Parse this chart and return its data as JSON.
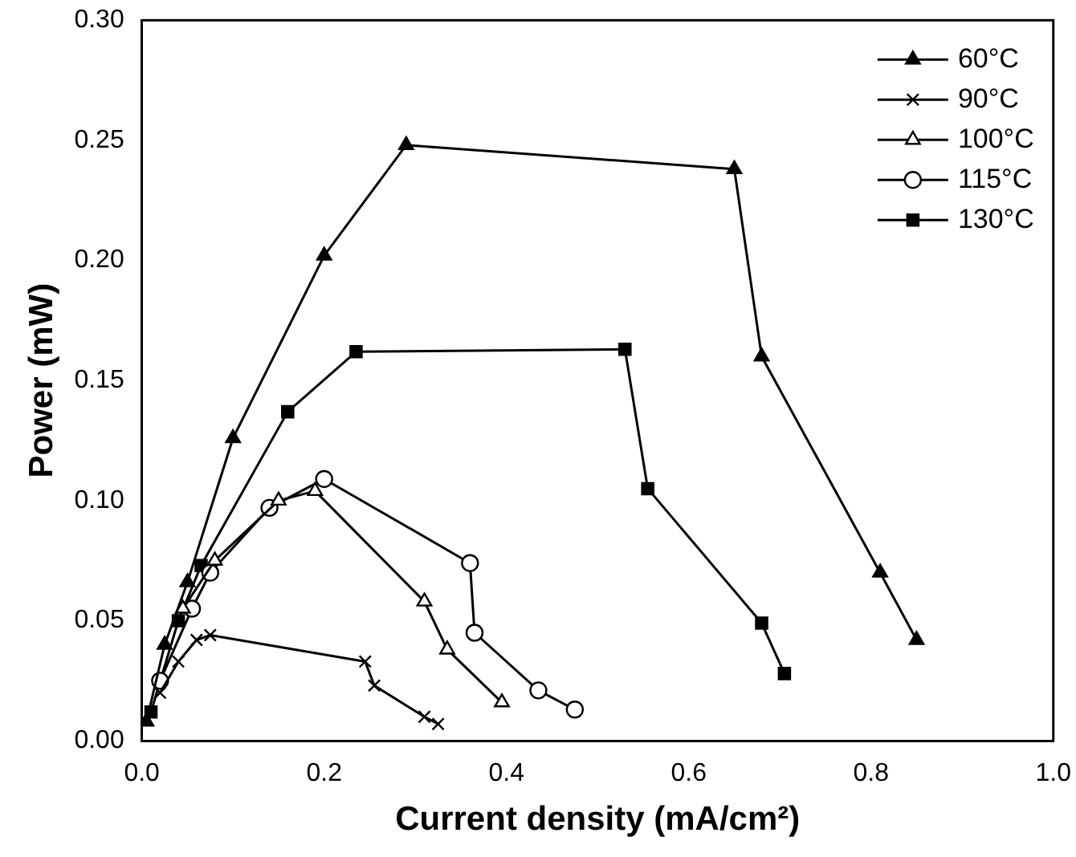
{
  "chart_data": {
    "type": "line",
    "xlabel": "Current density (mA/cm²)",
    "ylabel": "Power (mW)",
    "xlim": [
      0,
      1
    ],
    "ylim": [
      0,
      0.3
    ],
    "xticks": [
      {
        "value": 0,
        "label": "0.0"
      },
      {
        "value": 0.2,
        "label": "0.2"
      },
      {
        "value": 0.4,
        "label": "0.4"
      },
      {
        "value": 0.6,
        "label": "0.6"
      },
      {
        "value": 0.8,
        "label": "0.8"
      },
      {
        "value": 1,
        "label": "1.0"
      }
    ],
    "yticks": [
      {
        "value": 0,
        "label": "0.00"
      },
      {
        "value": 0.05,
        "label": "0.05"
      },
      {
        "value": 0.1,
        "label": "0.10"
      },
      {
        "value": 0.15,
        "label": "0.15"
      },
      {
        "value": 0.2,
        "label": "0.20"
      },
      {
        "value": 0.25,
        "label": "0.25"
      },
      {
        "value": 0.3,
        "label": "0.30"
      }
    ],
    "grid": false,
    "legend": "top right",
    "line_style": "solid",
    "series": [
      {
        "name": "60°C",
        "color": "#000000",
        "marker": "triangle",
        "x": [
          0.005,
          0.025,
          0.05,
          0.1,
          0.2,
          0.29,
          0.65,
          0.68,
          0.81,
          0.85
        ],
        "values": [
          0.008,
          0.04,
          0.066,
          0.126,
          0.202,
          0.248,
          0.238,
          0.16,
          0.07,
          0.042
        ]
      },
      {
        "name": "90°C",
        "color": "#000000",
        "marker": "cross",
        "x": [
          0.02,
          0.04,
          0.06,
          0.075,
          0.245,
          0.255,
          0.31,
          0.325
        ],
        "values": [
          0.02,
          0.033,
          0.042,
          0.044,
          0.033,
          0.023,
          0.01,
          0.007
        ]
      },
      {
        "name": "100°C",
        "color": "#000000",
        "marker": "triangle",
        "x": [
          0.045,
          0.08,
          0.15,
          0.19,
          0.31,
          0.335,
          0.395
        ],
        "values": [
          0.055,
          0.075,
          0.1,
          0.104,
          0.058,
          0.038,
          0.016
        ]
      },
      {
        "name": "115°C",
        "color": "#000000",
        "marker": "circle",
        "x": [
          0.02,
          0.055,
          0.075,
          0.14,
          0.2,
          0.36,
          0.365,
          0.435,
          0.475
        ],
        "values": [
          0.025,
          0.055,
          0.07,
          0.097,
          0.109,
          0.074,
          0.045,
          0.021,
          0.013
        ]
      },
      {
        "name": "130°C",
        "color": "#000000",
        "marker": "square",
        "x": [
          0.01,
          0.04,
          0.065,
          0.16,
          0.235,
          0.53,
          0.555,
          0.68,
          0.705
        ],
        "values": [
          0.012,
          0.05,
          0.073,
          0.137,
          0.162,
          0.163,
          0.105,
          0.049,
          0.028
        ]
      }
    ]
  }
}
